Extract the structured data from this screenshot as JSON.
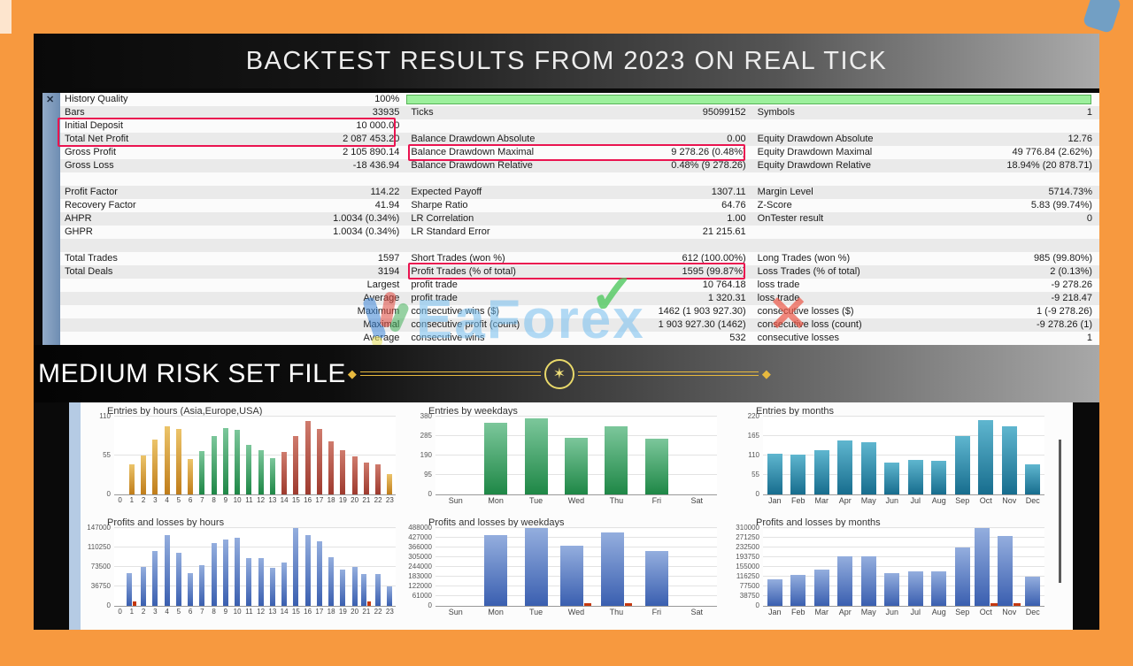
{
  "header": {
    "title": "BACKTEST RESULTS FROM 2023 ON REAL TICK"
  },
  "banner": {
    "label": "MEDIUM RISK SET FILE"
  },
  "watermark": {
    "text": "EaForex",
    "check": "✓",
    "x": "✕"
  },
  "colors": {
    "frame": "#f7993f",
    "highlight_box": "#ea1450",
    "progress_green": "#9cf09c",
    "ornament_gold": "#e7b93e",
    "bar_orange": "#d89435",
    "bar_green": "#3aa161",
    "bar_red": "#b94a41",
    "bar_teal": "#2d89a8",
    "bar_blue": "#4a70c4",
    "bar_loss": "#c5380f"
  },
  "stats": {
    "close_label": "✕",
    "history_quality_percent": "100%",
    "rows": [
      {
        "cells": [
          "History Quality",
          "100%",
          "",
          "",
          "",
          ""
        ]
      },
      {
        "cells": [
          "Bars",
          "33935",
          "Ticks",
          "95099152",
          "Symbols",
          "1"
        ]
      },
      {
        "cells": [
          "Initial Deposit",
          "10 000.00",
          "",
          "",
          "",
          ""
        ]
      },
      {
        "cells": [
          "Total Net Profit",
          "2 087 453.20",
          "Balance Drawdown Absolute",
          "0.00",
          "Equity Drawdown Absolute",
          "12.76"
        ]
      },
      {
        "cells": [
          "Gross Profit",
          "2 105 890.14",
          "Balance Drawdown Maximal",
          "9 278.26 (0.48%)",
          "Equity Drawdown Maximal",
          "49 776.84 (2.62%)"
        ]
      },
      {
        "cells": [
          "Gross Loss",
          "-18 436.94",
          "Balance Drawdown Relative",
          "0.48% (9 278.26)",
          "Equity Drawdown Relative",
          "18.94% (20 878.71)"
        ]
      },
      {
        "cells": [
          "",
          "",
          "",
          "",
          "",
          ""
        ]
      },
      {
        "cells": [
          "Profit Factor",
          "114.22",
          "Expected Payoff",
          "1307.11",
          "Margin Level",
          "5714.73%"
        ]
      },
      {
        "cells": [
          "Recovery Factor",
          "41.94",
          "Sharpe Ratio",
          "64.76",
          "Z-Score",
          "5.83 (99.74%)"
        ]
      },
      {
        "cells": [
          "AHPR",
          "1.0034 (0.34%)",
          "LR Correlation",
          "1.00",
          "OnTester result",
          "0"
        ]
      },
      {
        "cells": [
          "GHPR",
          "1.0034 (0.34%)",
          "LR Standard Error",
          "21 215.61",
          "",
          ""
        ]
      },
      {
        "cells": [
          "",
          "",
          "",
          "",
          "",
          ""
        ]
      },
      {
        "cells": [
          "Total Trades",
          "1597",
          "Short Trades (won %)",
          "612 (100.00%)",
          "Long Trades (won %)",
          "985 (99.80%)"
        ]
      },
      {
        "cells": [
          "Total Deals",
          "3194",
          "Profit Trades (% of total)",
          "1595 (99.87%)",
          "Loss Trades (% of total)",
          "2 (0.13%)"
        ]
      },
      {
        "cells": [
          "",
          "Largest",
          "profit trade",
          "10 764.18",
          "loss trade",
          "-9 278.26"
        ]
      },
      {
        "cells": [
          "",
          "Average",
          "profit trade",
          "1 320.31",
          "loss trade",
          "-9 218.47"
        ]
      },
      {
        "cells": [
          "",
          "Maximum",
          "consecutive wins ($)",
          "1462 (1 903 927.30)",
          "consecutive losses ($)",
          "1 (-9 278.26)"
        ]
      },
      {
        "cells": [
          "",
          "Maximal",
          "consecutive profit (count)",
          "1 903 927.30 (1462)",
          "consecutive loss (count)",
          "-9 278.26 (1)"
        ]
      },
      {
        "cells": [
          "",
          "Average",
          "consecutive wins",
          "532",
          "consecutive losses",
          "1"
        ]
      }
    ]
  },
  "chart_data": [
    {
      "type": "bar",
      "title": "Entries by hours (Asia,Europe,USA)",
      "categories": [
        "0",
        "1",
        "2",
        "3",
        "4",
        "5",
        "6",
        "7",
        "8",
        "9",
        "10",
        "11",
        "12",
        "13",
        "14",
        "15",
        "16",
        "17",
        "18",
        "19",
        "20",
        "21",
        "22",
        "23"
      ],
      "values": [
        0,
        42,
        55,
        78,
        96,
        92,
        50,
        61,
        82,
        94,
        91,
        70,
        63,
        51,
        60,
        83,
        104,
        92,
        75,
        62,
        54,
        45,
        42,
        29
      ],
      "bar_colors": [
        "orange",
        "orange",
        "orange",
        "orange",
        "orange",
        "orange",
        "orange",
        "green",
        "green",
        "green",
        "green",
        "green",
        "green",
        "green",
        "red",
        "red",
        "red",
        "red",
        "red",
        "red",
        "red",
        "red",
        "red",
        "orange"
      ],
      "yticks": [
        0,
        55,
        110
      ],
      "ylim": [
        0,
        110
      ],
      "grid": true
    },
    {
      "type": "bar",
      "title": "Entries by weekdays",
      "categories": [
        "Sun",
        "Mon",
        "Tue",
        "Wed",
        "Thu",
        "Fri",
        "Sat"
      ],
      "values": [
        0,
        350,
        372,
        275,
        333,
        270,
        0
      ],
      "color": "green",
      "yticks": [
        0,
        95,
        190,
        285,
        380
      ],
      "ylim": [
        0,
        380
      ],
      "grid": true
    },
    {
      "type": "bar",
      "title": "Entries by months",
      "categories": [
        "Jan",
        "Feb",
        "Mar",
        "Apr",
        "May",
        "Jun",
        "Jul",
        "Aug",
        "Sep",
        "Oct",
        "Nov",
        "Dec"
      ],
      "values": [
        115,
        113,
        125,
        153,
        147,
        91,
        97,
        96,
        165,
        211,
        192,
        84
      ],
      "color": "teal",
      "yticks": [
        0,
        55,
        110,
        165,
        220
      ],
      "ylim": [
        0,
        220
      ],
      "grid": true
    },
    {
      "type": "bar",
      "title": "Profits and losses by hours",
      "categories": [
        "0",
        "1",
        "2",
        "3",
        "4",
        "5",
        "6",
        "7",
        "8",
        "9",
        "10",
        "11",
        "12",
        "13",
        "14",
        "15",
        "16",
        "17",
        "18",
        "19",
        "20",
        "21",
        "22",
        "23"
      ],
      "values": [
        0,
        62000,
        73500,
        104000,
        133000,
        101000,
        62000,
        76500,
        118000,
        126000,
        128000,
        91000,
        89500,
        71500,
        81500,
        147000,
        134000,
        122500,
        92500,
        69000,
        73500,
        60000,
        60000,
        36500
      ],
      "loss_values": [
        0,
        8000,
        0,
        0,
        0,
        0,
        0,
        0,
        0,
        0,
        0,
        0,
        0,
        0,
        0,
        0,
        0,
        0,
        0,
        0,
        0,
        8500,
        0,
        0
      ],
      "color": "blue",
      "yticks": [
        0,
        36750,
        73500,
        110250,
        147000
      ],
      "ylim": [
        0,
        147000
      ],
      "grid": true
    },
    {
      "type": "bar",
      "title": "Profits and losses by weekdays",
      "categories": [
        "Sun",
        "Mon",
        "Tue",
        "Wed",
        "Thu",
        "Fri",
        "Sat"
      ],
      "values": [
        0,
        446000,
        488000,
        378000,
        458000,
        344000,
        0
      ],
      "loss_values": [
        0,
        0,
        0,
        9000,
        9000,
        0,
        0
      ],
      "color": "blue",
      "yticks": [
        0,
        61000,
        122000,
        183000,
        244000,
        305000,
        366000,
        427000,
        488000
      ],
      "ylim": [
        0,
        488000
      ],
      "grid": true
    },
    {
      "type": "bar",
      "title": "Profits and losses by months",
      "categories": [
        "Jan",
        "Feb",
        "Mar",
        "Apr",
        "May",
        "Jun",
        "Jul",
        "Aug",
        "Sep",
        "Oct",
        "Nov",
        "Dec"
      ],
      "values": [
        105000,
        122000,
        145000,
        198000,
        196000,
        129000,
        138000,
        137000,
        232000,
        311000,
        279000,
        116000
      ],
      "loss_values": [
        0,
        0,
        0,
        0,
        0,
        0,
        0,
        0,
        0,
        9000,
        9000,
        0
      ],
      "color": "blue",
      "yticks": [
        0,
        38750,
        77500,
        116250,
        155000,
        193750,
        232500,
        271250,
        310000
      ],
      "ylim": [
        0,
        310000
      ],
      "grid": true
    }
  ]
}
